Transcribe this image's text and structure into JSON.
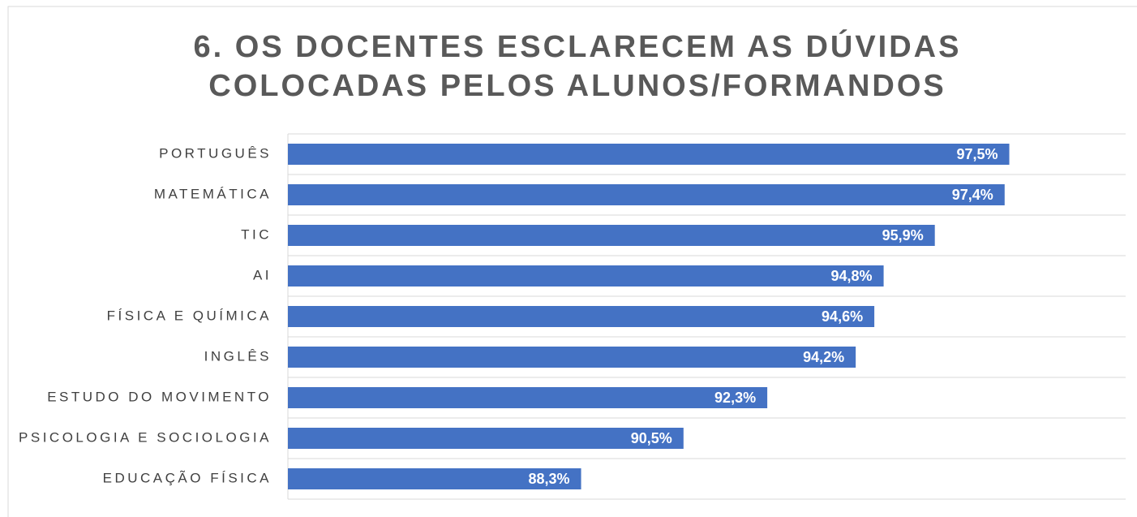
{
  "chart_data": {
    "type": "bar",
    "orientation": "horizontal",
    "title": [
      "6. OS DOCENTES ESCLARECEM AS DÚVIDAS",
      "COLOCADAS PELOS ALUNOS/FORMANDOS"
    ],
    "categories": [
      "PORTUGUÊS",
      "MATEMÁTICA",
      "TIC",
      "AI",
      "FÍSICA E QUÍMICA",
      "INGLÊS",
      "ESTUDO DO MOVIMENTO",
      "PSICOLOGIA E SOCIOLOGIA",
      "EDUCAÇÃO FÍSICA"
    ],
    "values": [
      97.5,
      97.4,
      95.9,
      94.8,
      94.6,
      94.2,
      92.3,
      90.5,
      88.3
    ],
    "value_labels": [
      "97,5%",
      "97,4%",
      "95,9%",
      "94,8%",
      "94,6%",
      "94,2%",
      "92,3%",
      "90,5%",
      "88,3%"
    ],
    "color": "#4472c4",
    "xlim": [
      82,
      100
    ]
  }
}
